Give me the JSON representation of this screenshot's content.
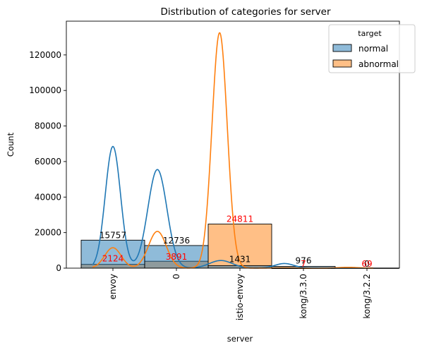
{
  "chart_data": {
    "type": "bar",
    "title": "Distribution of categories for server",
    "xlabel": "server",
    "ylabel": "Count",
    "categories": [
      "envoy",
      "0",
      "istio-envoy",
      "kong/3.3.0",
      "kong/3.2.2"
    ],
    "yticks": [
      0,
      20000,
      40000,
      60000,
      80000,
      100000,
      120000
    ],
    "ylim": [
      0,
      139000
    ],
    "legend": {
      "title": "target",
      "placement": "top-right",
      "entries": [
        "normal",
        "abnormal"
      ]
    },
    "series": [
      {
        "name": "normal",
        "color": "#1f77b4",
        "values": [
          15757,
          12736,
          1431,
          976,
          0
        ],
        "labels": [
          "15757",
          "12736",
          "1431",
          "976",
          "0"
        ]
      },
      {
        "name": "abnormal",
        "color": "#ff7f0e",
        "values": [
          2124,
          3891,
          24811,
          7,
          69
        ],
        "labels": [
          "2124",
          "3891",
          "24811",
          "7",
          "69"
        ]
      }
    ],
    "label_colors": {
      "normal": "#000000",
      "abnormal": "#ff0000"
    },
    "kde": [
      {
        "series": "normal",
        "color": "#1f77b4",
        "peaks": [
          {
            "center": 0.3,
            "height": 68500,
            "width": 0.12
          },
          {
            "center": 1.0,
            "height": 55500,
            "width": 0.15
          },
          {
            "center": 2.0,
            "height": 4300,
            "width": 0.18
          },
          {
            "center": 3.0,
            "height": 2600,
            "width": 0.15
          }
        ]
      },
      {
        "series": "abnormal",
        "color": "#ff7f0e",
        "peaks": [
          {
            "center": 0.3,
            "height": 11500,
            "width": 0.13
          },
          {
            "center": 1.0,
            "height": 20700,
            "width": 0.14
          },
          {
            "center": 1.98,
            "height": 132500,
            "width": 0.12
          },
          {
            "center": 3.0,
            "height": 250,
            "width": 0.15
          },
          {
            "center": 4.0,
            "height": 450,
            "width": 0.15
          }
        ]
      }
    ]
  }
}
